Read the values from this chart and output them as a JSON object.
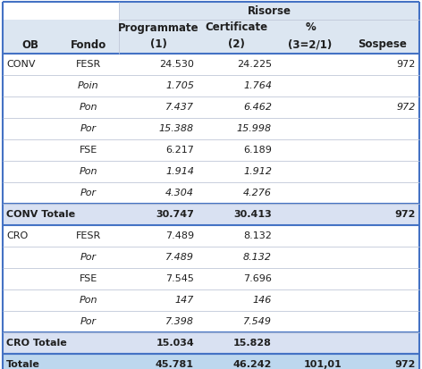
{
  "title_header": "Risorse",
  "rows": [
    {
      "ob": "CONV",
      "fondo": "FESR",
      "prog": "24.530",
      "cert": "24.225",
      "pct": "",
      "sosp": "972",
      "bold": false,
      "italic_fondo": false,
      "totale": false,
      "grand_totale": false
    },
    {
      "ob": "",
      "fondo": "Poin",
      "prog": "1.705",
      "cert": "1.764",
      "pct": "",
      "sosp": "",
      "bold": false,
      "italic_fondo": true,
      "totale": false,
      "grand_totale": false
    },
    {
      "ob": "",
      "fondo": "Pon",
      "prog": "7.437",
      "cert": "6.462",
      "pct": "",
      "sosp": "972",
      "bold": false,
      "italic_fondo": true,
      "totale": false,
      "grand_totale": false
    },
    {
      "ob": "",
      "fondo": "Por",
      "prog": "15.388",
      "cert": "15.998",
      "pct": "",
      "sosp": "",
      "bold": false,
      "italic_fondo": true,
      "totale": false,
      "grand_totale": false
    },
    {
      "ob": "",
      "fondo": "FSE",
      "prog": "6.217",
      "cert": "6.189",
      "pct": "",
      "sosp": "",
      "bold": false,
      "italic_fondo": false,
      "totale": false,
      "grand_totale": false
    },
    {
      "ob": "",
      "fondo": "Pon",
      "prog": "1.914",
      "cert": "1.912",
      "pct": "",
      "sosp": "",
      "bold": false,
      "italic_fondo": true,
      "totale": false,
      "grand_totale": false
    },
    {
      "ob": "",
      "fondo": "Por",
      "prog": "4.304",
      "cert": "4.276",
      "pct": "",
      "sosp": "",
      "bold": false,
      "italic_fondo": true,
      "totale": false,
      "grand_totale": false
    },
    {
      "ob": "CONV Totale",
      "fondo": "",
      "prog": "30.747",
      "cert": "30.413",
      "pct": "",
      "sosp": "972",
      "bold": true,
      "italic_fondo": false,
      "totale": true,
      "grand_totale": false
    },
    {
      "ob": "CRO",
      "fondo": "FESR",
      "prog": "7.489",
      "cert": "8.132",
      "pct": "",
      "sosp": "",
      "bold": false,
      "italic_fondo": false,
      "totale": false,
      "grand_totale": false
    },
    {
      "ob": "",
      "fondo": "Por",
      "prog": "7.489",
      "cert": "8.132",
      "pct": "",
      "sosp": "",
      "bold": false,
      "italic_fondo": true,
      "totale": false,
      "grand_totale": false
    },
    {
      "ob": "",
      "fondo": "FSE",
      "prog": "7.545",
      "cert": "7.696",
      "pct": "",
      "sosp": "",
      "bold": false,
      "italic_fondo": false,
      "totale": false,
      "grand_totale": false
    },
    {
      "ob": "",
      "fondo": "Pon",
      "prog": "147",
      "cert": "146",
      "pct": "",
      "sosp": "",
      "bold": false,
      "italic_fondo": true,
      "totale": false,
      "grand_totale": false
    },
    {
      "ob": "",
      "fondo": "Por",
      "prog": "7.398",
      "cert": "7.549",
      "pct": "",
      "sosp": "",
      "bold": false,
      "italic_fondo": true,
      "totale": false,
      "grand_totale": false
    },
    {
      "ob": "CRO Totale",
      "fondo": "",
      "prog": "15.034",
      "cert": "15.828",
      "pct": "",
      "sosp": "",
      "bold": true,
      "italic_fondo": false,
      "totale": true,
      "grand_totale": false
    },
    {
      "ob": "Totale",
      "fondo": "",
      "prog": "45.781",
      "cert": "46.242",
      "pct": "101,01",
      "sosp": "972",
      "bold": true,
      "italic_fondo": false,
      "totale": true,
      "grand_totale": true
    }
  ],
  "bg_header_blue": "#dce6f1",
  "bg_white": "#ffffff",
  "bg_totale": "#d9e1f2",
  "bg_grand_totale": "#bdd7ee",
  "border_color": "#4472c4",
  "light_border": "#c0c8d8",
  "figw": 4.72,
  "figh": 4.13,
  "dpi": 100
}
